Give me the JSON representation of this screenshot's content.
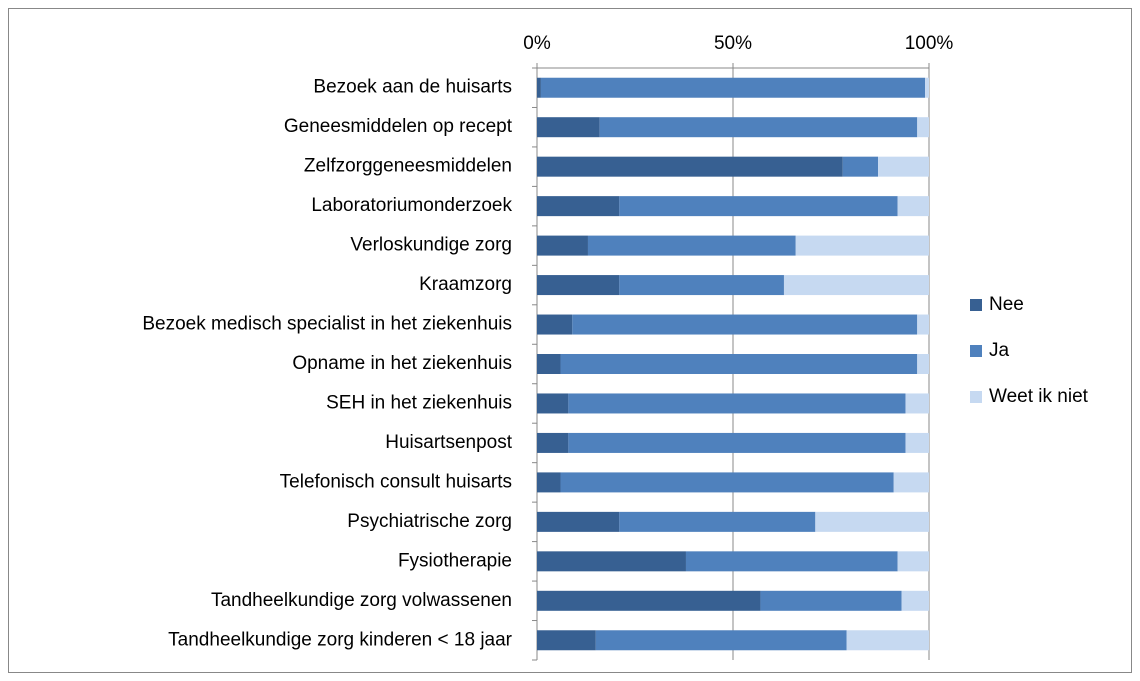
{
  "chart_data": {
    "type": "stacked_bar_horizontal",
    "categories": [
      "Bezoek aan de huisarts",
      "Geneesmiddelen op recept",
      "Zelfzorggeneesmiddelen",
      "Laboratoriumonderzoek",
      "Verloskundige zorg",
      "Kraamzorg",
      "Bezoek medisch specialist in het ziekenhuis",
      "Opname in het ziekenhuis",
      "SEH in het ziekenhuis",
      "Huisartsenpost",
      "Telefonisch consult huisarts",
      "Psychiatrische zorg",
      "Fysiotherapie",
      "Tandheelkundige zorg volwassenen",
      "Tandheelkundige zorg kinderen < 18 jaar"
    ],
    "series": [
      {
        "name": "Nee",
        "color": "#376092",
        "values": [
          1,
          16,
          78,
          21,
          13,
          21,
          9,
          6,
          8,
          8,
          6,
          21,
          38,
          57,
          15
        ]
      },
      {
        "name": "Ja",
        "color": "#4f81bd",
        "values": [
          98,
          81,
          9,
          71,
          53,
          42,
          88,
          91,
          86,
          86,
          85,
          50,
          54,
          36,
          64
        ]
      },
      {
        "name": "Weet ik niet",
        "color": "#c6d9f1",
        "values": [
          1,
          3,
          13,
          8,
          34,
          37,
          3,
          3,
          6,
          6,
          9,
          29,
          8,
          7,
          21
        ]
      }
    ],
    "xlim": [
      0,
      100
    ],
    "xticks": [
      {
        "value": 0,
        "label": "0%"
      },
      {
        "value": 50,
        "label": "50%"
      },
      {
        "value": 100,
        "label": "100%"
      }
    ],
    "grid": true,
    "legend": "right"
  }
}
